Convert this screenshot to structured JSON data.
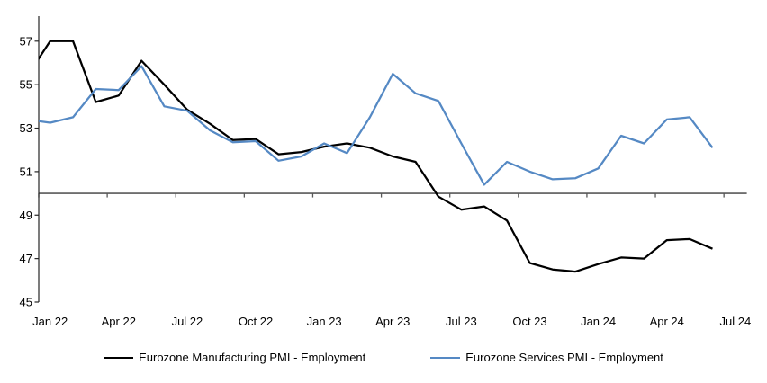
{
  "chart_data": {
    "type": "line",
    "title": "",
    "x_tick_labels": [
      "Jan 22",
      "Apr 22",
      "Jul 22",
      "Oct 22",
      "Jan 23",
      "Apr 23",
      "Jul 23",
      "Oct 23",
      "Jan 24",
      "Apr 24",
      "Jul 24"
    ],
    "y_tick_labels": [
      "45",
      "47",
      "49",
      "51",
      "53",
      "55",
      "57"
    ],
    "y_ticks": [
      45,
      47,
      49,
      51,
      53,
      55,
      57
    ],
    "ylim": [
      45,
      57.5
    ],
    "reference_line_value": 50,
    "grid": "off",
    "legend_position": "bottom",
    "months": [
      "Dec 21",
      "Jan 22",
      "Feb 22",
      "Mar 22",
      "Apr 22",
      "May 22",
      "Jun 22",
      "Jul 22",
      "Aug 22",
      "Sep 22",
      "Oct 22",
      "Nov 22",
      "Dec 22",
      "Jan 23",
      "Feb 23",
      "Mar 23",
      "Apr 23",
      "May 23",
      "Jun 23",
      "Jul 23",
      "Aug 23",
      "Sep 23",
      "Oct 23",
      "Nov 23",
      "Dec 23",
      "Jan 24",
      "Feb 24",
      "Mar 24",
      "Apr 24",
      "May 24",
      "Jun 24"
    ],
    "series": [
      {
        "name": "Eurozone Manufacturing PMI - Employment",
        "color": "#000000",
        "values": [
          55.4,
          57.0,
          57.0,
          54.2,
          54.5,
          56.1,
          55.0,
          53.85,
          53.2,
          52.45,
          52.5,
          51.8,
          51.9,
          52.15,
          52.3,
          52.1,
          51.7,
          51.45,
          49.85,
          49.25,
          49.4,
          48.75,
          46.8,
          46.5,
          46.4,
          46.75,
          47.05,
          47.0,
          47.85,
          47.9,
          47.45
        ]
      },
      {
        "name": "Eurozone Services PMI - Employment",
        "color": "#5589c4",
        "values": [
          53.4,
          53.25,
          53.5,
          54.8,
          54.75,
          55.85,
          54.0,
          53.8,
          52.9,
          52.35,
          52.4,
          51.5,
          51.7,
          52.3,
          51.85,
          53.5,
          55.5,
          54.6,
          54.25,
          52.3,
          50.4,
          51.45,
          51.0,
          50.65,
          50.7,
          51.15,
          52.65,
          52.3,
          53.4,
          53.5,
          52.1
        ]
      }
    ],
    "axis_color": "#262626",
    "reference_line_color": "#595959"
  }
}
